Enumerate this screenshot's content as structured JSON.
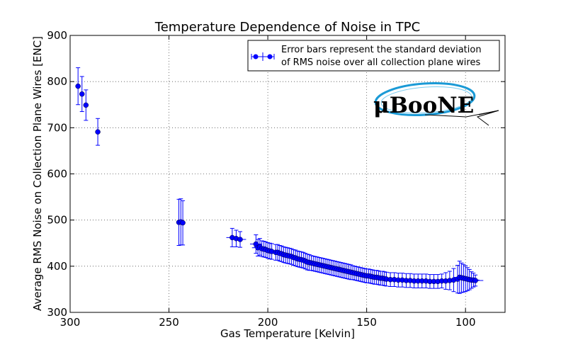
{
  "chart_data": {
    "type": "scatter",
    "title": "Temperature Dependence of Noise in TPC",
    "xlabel": "Gas Temperature [Kelvin]",
    "ylabel": "Average RMS Noise on Collection Plane Wires [ENC]",
    "xlim": [
      300,
      80
    ],
    "ylim": [
      300,
      900
    ],
    "x_reversed": true,
    "xticks": [
      300,
      250,
      200,
      150,
      100
    ],
    "yticks": [
      300,
      400,
      500,
      600,
      700,
      800,
      900
    ],
    "grid": true,
    "legend": {
      "position": "top-right",
      "lines": [
        "Error bars represent the standard deviation",
        "of RMS noise over all collection plane wires"
      ]
    },
    "logo_text": "μBooNE",
    "series": [
      {
        "color": "#0000ff",
        "x": [
          296,
          294,
          292,
          286,
          245,
          244,
          243,
          218,
          216,
          214,
          206,
          205,
          204,
          203,
          202,
          201,
          200,
          199,
          198,
          196,
          195,
          194,
          193,
          192,
          191,
          190,
          189,
          188,
          187,
          186,
          185,
          184,
          183,
          182,
          181,
          180,
          179,
          178,
          177,
          176,
          175,
          174,
          173,
          172,
          171,
          170,
          169,
          168,
          167,
          166,
          165,
          164,
          163,
          162,
          161,
          160,
          159,
          158,
          157,
          156,
          155,
          154,
          153,
          152,
          151,
          150,
          149,
          148,
          147,
          146,
          145,
          144,
          143,
          142,
          141,
          140,
          138,
          136,
          134,
          132,
          130,
          128,
          126,
          124,
          122,
          120,
          118,
          116,
          114,
          112,
          110,
          108,
          106,
          104,
          103,
          102,
          101,
          100,
          99,
          98,
          97,
          96,
          95
        ],
        "y": [
          790,
          773,
          749,
          691,
          495,
          496,
          494,
          462,
          460,
          458,
          448,
          440,
          442,
          438,
          437,
          436,
          434,
          433,
          432,
          430,
          430,
          428,
          427,
          425,
          424,
          423,
          422,
          421,
          419,
          418,
          416,
          415,
          414,
          413,
          411,
          409,
          408,
          407,
          406,
          405,
          404,
          403,
          402,
          401,
          400,
          399,
          398,
          397,
          396,
          395,
          394,
          393,
          392,
          391,
          390,
          389,
          388,
          387,
          386,
          385,
          384,
          383,
          382,
          381,
          380,
          379,
          379,
          378,
          377,
          376,
          376,
          375,
          374,
          374,
          373,
          372,
          371,
          371,
          370,
          370,
          369,
          369,
          368,
          368,
          368,
          368,
          367,
          367,
          367,
          368,
          368,
          369,
          370,
          372,
          376,
          375,
          374,
          373,
          372,
          371,
          370,
          370,
          369
        ],
        "y_err": [
          40,
          38,
          33,
          29,
          50,
          50,
          48,
          20,
          18,
          17,
          20,
          18,
          18,
          17,
          17,
          17,
          17,
          17,
          17,
          17,
          17,
          17,
          17,
          17,
          17,
          17,
          17,
          17,
          17,
          17,
          17,
          17,
          17,
          17,
          17,
          17,
          17,
          16,
          16,
          16,
          16,
          16,
          16,
          16,
          16,
          16,
          16,
          16,
          16,
          16,
          16,
          16,
          16,
          16,
          16,
          16,
          16,
          16,
          15,
          15,
          15,
          15,
          15,
          15,
          15,
          15,
          15,
          15,
          15,
          15,
          15,
          15,
          15,
          15,
          15,
          15,
          15,
          15,
          15,
          15,
          15,
          15,
          15,
          15,
          15,
          15,
          15,
          15,
          15,
          15,
          18,
          20,
          25,
          30,
          35,
          32,
          30,
          28,
          25,
          22,
          18,
          15,
          12
        ],
        "x_err": [
          1,
          1,
          1,
          1,
          1,
          1,
          1,
          3,
          3,
          3,
          3,
          3,
          3,
          3,
          3,
          3,
          3,
          3,
          3,
          3,
          3,
          3,
          3,
          3,
          3,
          3,
          3,
          3,
          3,
          3,
          3,
          3,
          3,
          3,
          3,
          3,
          3,
          3,
          3,
          3,
          3,
          3,
          3,
          3,
          3,
          3,
          3,
          3,
          3,
          3,
          3,
          3,
          3,
          3,
          3,
          3,
          3,
          3,
          3,
          3,
          3,
          3,
          3,
          3,
          3,
          3,
          3,
          3,
          3,
          3,
          3,
          3,
          3,
          3,
          3,
          3,
          3,
          3,
          3,
          3,
          3,
          3,
          3,
          3,
          3,
          3,
          3,
          3,
          3,
          3,
          3,
          3,
          3,
          3,
          3,
          3,
          3,
          3,
          3,
          3,
          3,
          3,
          4
        ]
      }
    ]
  }
}
